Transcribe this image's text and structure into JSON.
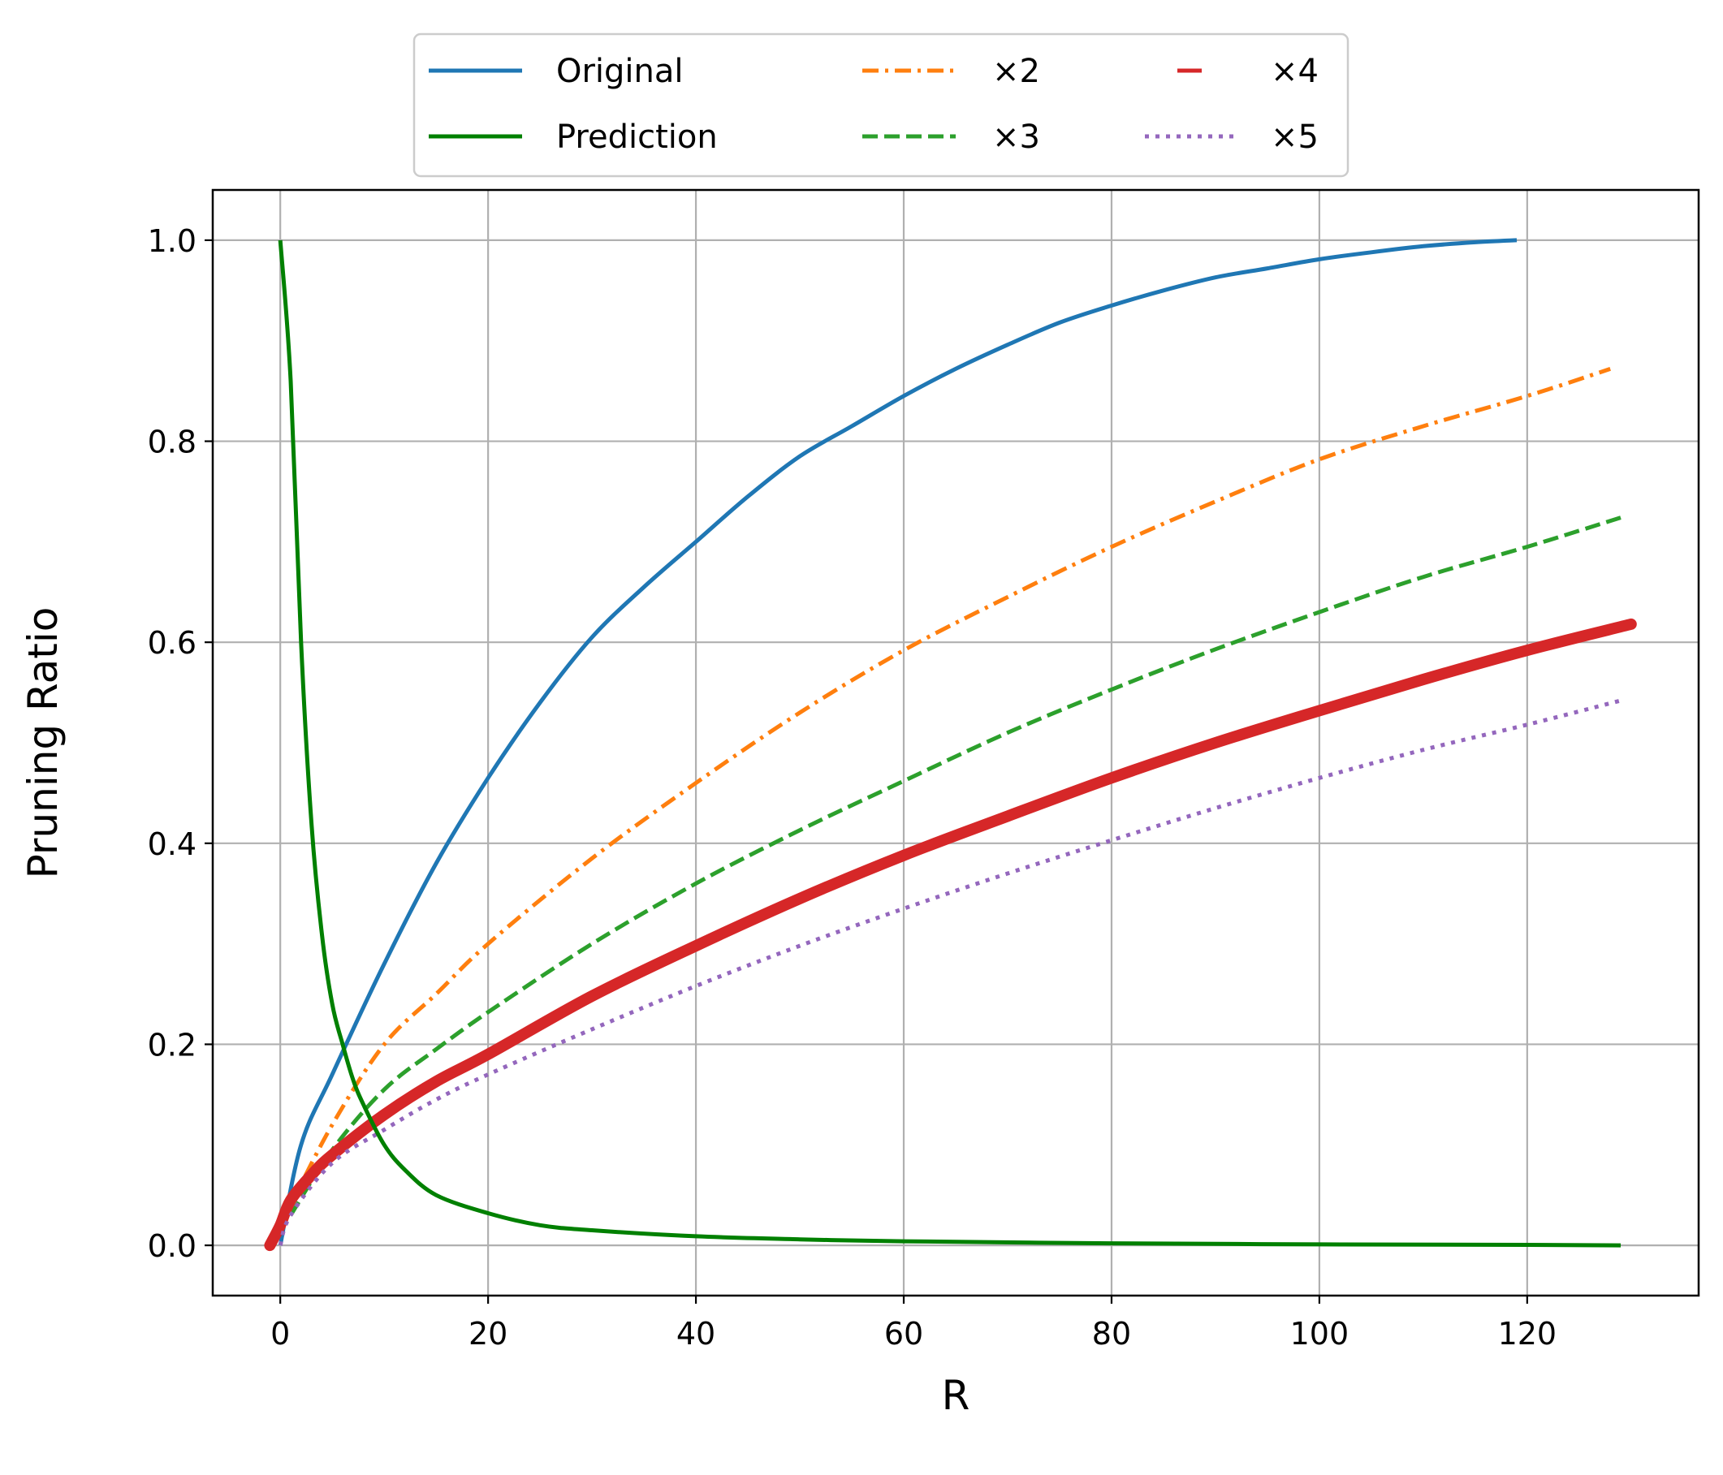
{
  "chart_data": {
    "type": "line",
    "title": "",
    "xlabel": "R",
    "ylabel": "Pruning Ratio",
    "xlim": [
      -6.5,
      136.5
    ],
    "ylim": [
      -0.05,
      1.05
    ],
    "xticks": [
      0,
      20,
      40,
      60,
      80,
      100,
      120
    ],
    "yticks": [
      0.0,
      0.2,
      0.4,
      0.6,
      0.8,
      1.0
    ],
    "xtick_labels": [
      "0",
      "20",
      "40",
      "60",
      "80",
      "100",
      "120"
    ],
    "ytick_labels": [
      "0.0",
      "0.2",
      "0.4",
      "0.6",
      "0.8",
      "1.0"
    ],
    "grid": true,
    "legend_position": "top-center, outside plot, 3 columns",
    "series": [
      {
        "name": "Original",
        "color": "#1f77b4",
        "style": "solid",
        "x": [
          0,
          2,
          5,
          10,
          15,
          20,
          25,
          30,
          35,
          40,
          45,
          50,
          55,
          60,
          65,
          70,
          75,
          80,
          85,
          90,
          95,
          100,
          105,
          110,
          115,
          119
        ],
        "y": [
          0.0,
          0.1,
          0.17,
          0.28,
          0.38,
          0.465,
          0.54,
          0.605,
          0.655,
          0.7,
          0.745,
          0.785,
          0.815,
          0.845,
          0.872,
          0.896,
          0.918,
          0.935,
          0.95,
          0.963,
          0.972,
          0.981,
          0.988,
          0.994,
          0.998,
          1.0
        ]
      },
      {
        "name": "Prediction",
        "color": "#008000",
        "style": "solid",
        "x": [
          0,
          1,
          2,
          3,
          4,
          5,
          6,
          7,
          8,
          10,
          12,
          15,
          20,
          25,
          30,
          40,
          50,
          60,
          80,
          100,
          120,
          129
        ],
        "y": [
          1.0,
          0.86,
          0.6,
          0.42,
          0.31,
          0.24,
          0.2,
          0.165,
          0.14,
          0.1,
          0.075,
          0.05,
          0.032,
          0.02,
          0.015,
          0.009,
          0.006,
          0.004,
          0.002,
          0.001,
          0.0005,
          0.0
        ]
      },
      {
        "name": "×2",
        "color": "#ff7f0e",
        "style": "dashdot",
        "x": [
          1,
          5,
          10,
          15,
          20,
          30,
          40,
          50,
          60,
          70,
          80,
          90,
          100,
          110,
          120,
          128
        ],
        "y": [
          0.04,
          0.12,
          0.2,
          0.25,
          0.3,
          0.385,
          0.46,
          0.53,
          0.592,
          0.645,
          0.695,
          0.74,
          0.782,
          0.815,
          0.845,
          0.872
        ]
      },
      {
        "name": "×3",
        "color": "#2ca02c",
        "style": "dashed",
        "x": [
          1,
          5,
          10,
          15,
          20,
          30,
          40,
          50,
          60,
          70,
          80,
          90,
          100,
          110,
          120,
          129
        ],
        "y": [
          0.03,
          0.095,
          0.155,
          0.195,
          0.232,
          0.3,
          0.36,
          0.413,
          0.462,
          0.51,
          0.553,
          0.593,
          0.63,
          0.665,
          0.695,
          0.724
        ]
      },
      {
        "name": "×4",
        "color": "#d62728",
        "style": "thick",
        "x": [
          -1,
          0,
          1,
          3,
          5,
          10,
          15,
          20,
          30,
          40,
          50,
          60,
          70,
          80,
          90,
          100,
          110,
          120,
          130
        ],
        "y": [
          0.0,
          0.02,
          0.045,
          0.07,
          0.09,
          0.13,
          0.163,
          0.19,
          0.248,
          0.298,
          0.345,
          0.388,
          0.427,
          0.465,
          0.5,
          0.532,
          0.563,
          0.592,
          0.618
        ]
      },
      {
        "name": "×5",
        "color": "#9467bd",
        "style": "dotted",
        "x": [
          0,
          1,
          5,
          10,
          15,
          20,
          30,
          40,
          50,
          60,
          70,
          80,
          90,
          100,
          110,
          120,
          129
        ],
        "y": [
          0.0,
          0.03,
          0.082,
          0.115,
          0.145,
          0.17,
          0.215,
          0.258,
          0.298,
          0.335,
          0.37,
          0.403,
          0.435,
          0.465,
          0.493,
          0.518,
          0.542
        ]
      }
    ]
  }
}
